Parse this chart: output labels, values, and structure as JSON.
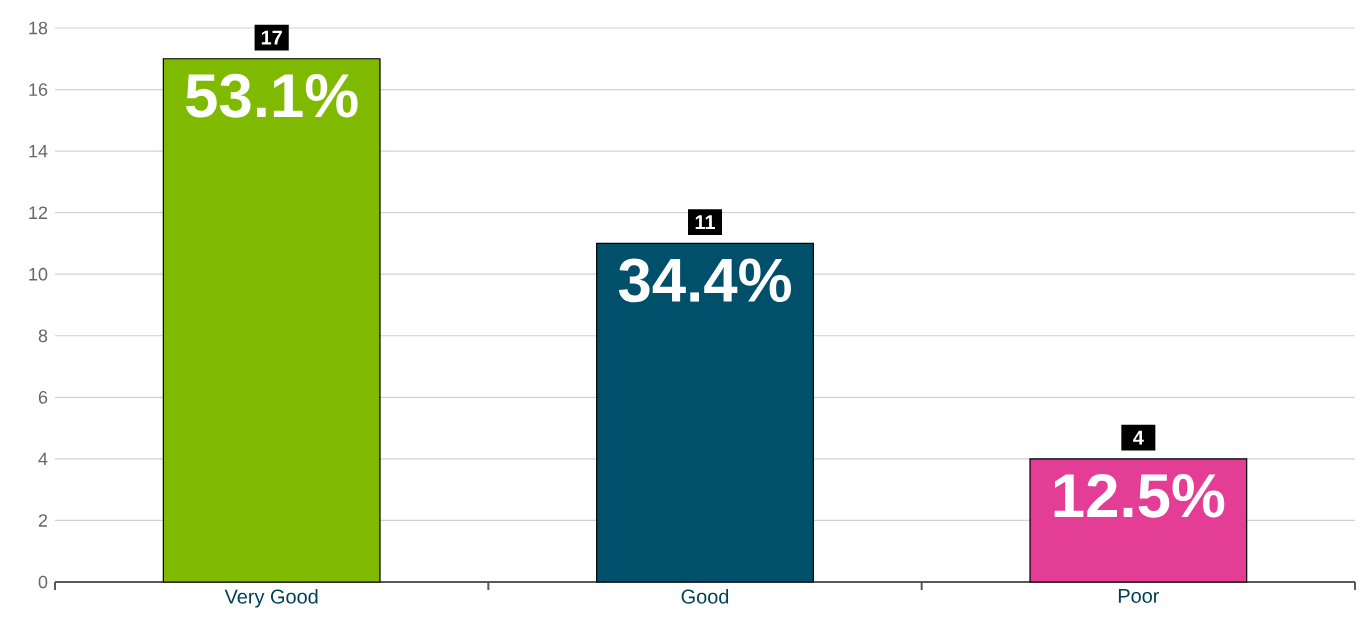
{
  "chart_data": {
    "type": "bar",
    "categories": [
      "Very Good",
      "Good",
      "Poor"
    ],
    "values": [
      17,
      11,
      4
    ],
    "colors": [
      "#7fba00",
      "#004f6b",
      "#e33d96"
    ],
    "ylim": [
      0,
      18
    ],
    "yticks": [
      0,
      2,
      4,
      6,
      8,
      10,
      12,
      14,
      16,
      18
    ],
    "grid": "y",
    "data_labels": true,
    "annotations": [
      {
        "text": "53.1%",
        "x": "Very Good",
        "y": 17
      },
      {
        "text": "34.4%",
        "x": "Good",
        "y": 11
      },
      {
        "text": "12.5%",
        "x": "Poor",
        "y": 4
      }
    ]
  }
}
